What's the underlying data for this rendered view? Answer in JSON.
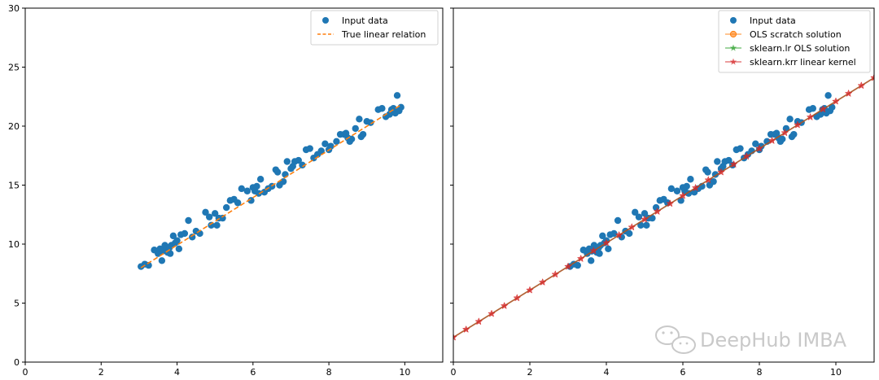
{
  "chart_data": [
    {
      "type": "scatter",
      "title": "",
      "xlabel": "",
      "ylabel": "",
      "xlim": [
        0,
        11
      ],
      "ylim": [
        0,
        30
      ],
      "xticks": [
        0,
        2,
        4,
        6,
        8,
        10
      ],
      "yticks": [
        0,
        5,
        10,
        15,
        20,
        25,
        30
      ],
      "legend_position": "top-right",
      "series": [
        {
          "name": "Input data",
          "kind": "scatter",
          "color": "#1f77b4",
          "x": [
            3.05,
            3.15,
            3.25,
            3.4,
            3.5,
            3.55,
            3.6,
            3.62,
            3.68,
            3.72,
            3.75,
            3.8,
            3.82,
            3.85,
            3.9,
            3.95,
            4.0,
            4.05,
            4.1,
            4.2,
            4.3,
            4.4,
            4.5,
            4.6,
            4.75,
            4.85,
            4.9,
            5.0,
            5.05,
            5.1,
            5.2,
            5.3,
            5.4,
            5.5,
            5.6,
            5.7,
            5.85,
            5.95,
            6.0,
            6.05,
            6.1,
            6.15,
            6.2,
            6.3,
            6.4,
            6.5,
            6.6,
            6.65,
            6.7,
            6.8,
            6.85,
            6.9,
            7.0,
            7.05,
            7.1,
            7.2,
            7.3,
            7.4,
            7.5,
            7.6,
            7.7,
            7.8,
            7.9,
            8.0,
            8.05,
            8.2,
            8.3,
            8.4,
            8.45,
            8.5,
            8.55,
            8.6,
            8.7,
            8.8,
            8.85,
            8.9,
            9.0,
            9.1,
            9.3,
            9.4,
            9.5,
            9.6,
            9.65,
            9.7,
            9.75,
            9.8,
            9.85,
            9.9
          ],
          "y": [
            8.1,
            8.3,
            8.2,
            9.5,
            9.2,
            9.6,
            8.6,
            9.4,
            9.9,
            9.6,
            9.3,
            9.7,
            9.2,
            9.9,
            10.7,
            10.1,
            10.3,
            9.6,
            10.8,
            10.9,
            12.0,
            10.6,
            11.1,
            10.9,
            12.7,
            12.3,
            11.6,
            12.6,
            11.6,
            12.2,
            12.2,
            13.1,
            13.7,
            13.8,
            13.5,
            14.7,
            14.5,
            13.7,
            14.8,
            14.5,
            14.9,
            14.3,
            15.5,
            14.4,
            14.7,
            14.9,
            16.3,
            16.1,
            15.0,
            15.3,
            15.9,
            17.0,
            16.4,
            16.6,
            17.0,
            17.1,
            16.7,
            18.0,
            18.1,
            17.3,
            17.6,
            17.9,
            18.5,
            18.0,
            18.3,
            18.7,
            19.3,
            19.3,
            19.4,
            19.0,
            18.7,
            18.9,
            19.8,
            20.6,
            19.1,
            19.3,
            20.4,
            20.3,
            21.4,
            21.5,
            20.8,
            21.0,
            21.4,
            21.5,
            21.1,
            22.6,
            21.3,
            21.6
          ]
        },
        {
          "name": "True linear relation",
          "kind": "line",
          "style": "dashed",
          "color": "#ff7f0e",
          "x": [
            3.05,
            9.9
          ],
          "y": [
            8.0,
            21.8
          ]
        }
      ]
    },
    {
      "type": "scatter",
      "title": "",
      "xlabel": "",
      "ylabel": "",
      "xlim": [
        0,
        11
      ],
      "ylim": [
        0,
        30
      ],
      "xticks": [
        0,
        2,
        4,
        6,
        8,
        10
      ],
      "legend_position": "top-right",
      "series": [
        {
          "name": "Input data",
          "kind": "scatter",
          "color": "#1f77b4",
          "same_as": "left"
        },
        {
          "name": "OLS scratch solution",
          "kind": "line",
          "marker": "circle",
          "color": "#ff7f0e",
          "x": [
            0,
            11
          ],
          "y": [
            2.1,
            24.1
          ]
        },
        {
          "name": "sklearn.lr OLS solution",
          "kind": "line",
          "marker": "star",
          "color": "#2ca02c",
          "x": [
            0,
            11
          ],
          "y": [
            2.1,
            24.1
          ]
        },
        {
          "name": "sklearn.krr linear kernel",
          "kind": "line",
          "marker": "star",
          "color": "#d62728",
          "x": [
            0,
            11
          ],
          "y": [
            2.1,
            24.1
          ],
          "marker_every": 0.3333
        }
      ]
    }
  ],
  "watermark": {
    "text": "DeepHub IMBA",
    "icon": "wechat-icon"
  }
}
